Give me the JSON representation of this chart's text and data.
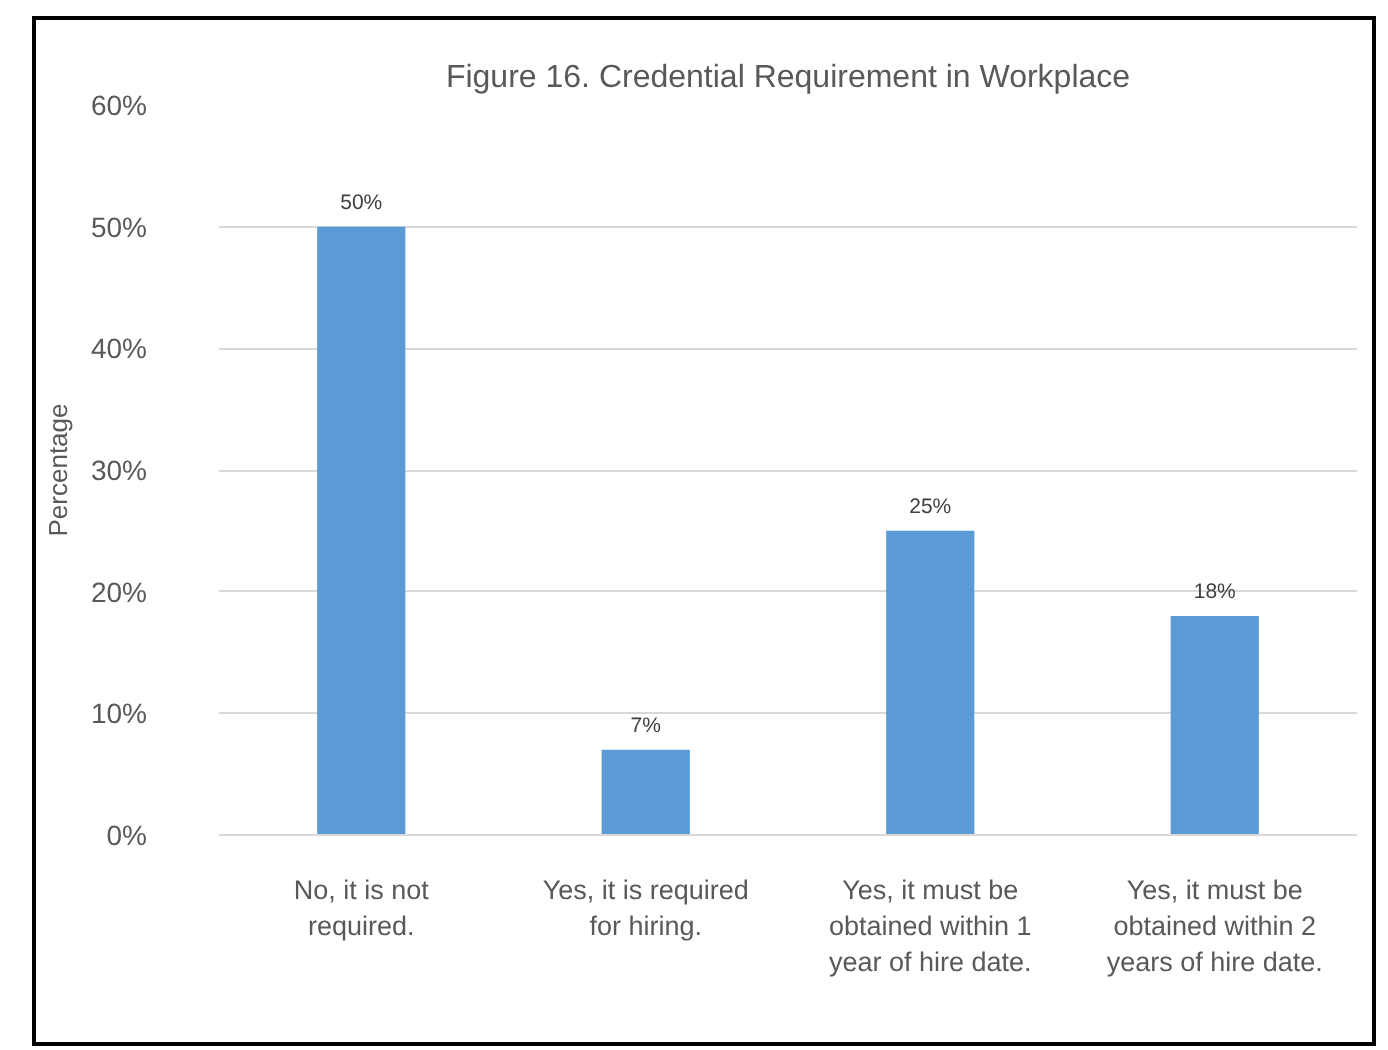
{
  "chart_data": {
    "type": "bar",
    "title": "Figure 16. Credential Requirement in Workplace",
    "ylabel": "Percentage",
    "categories": [
      "No, it is not required.",
      "Yes, it is required for hiring.",
      "Yes, it must be obtained within 1 year of hire date.",
      "Yes, it must be obtained within 2 years of hire date."
    ],
    "values": [
      50,
      7,
      25,
      18
    ],
    "value_labels": [
      "50%",
      "7%",
      "25%",
      "18%"
    ],
    "color": "#5b9bd5",
    "ylim": [
      0,
      60
    ],
    "yticks": [
      {
        "value": 0,
        "label": "0%"
      },
      {
        "value": 10,
        "label": "10%"
      },
      {
        "value": 20,
        "label": "20%"
      },
      {
        "value": 30,
        "label": "30%"
      },
      {
        "value": 40,
        "label": "40%"
      },
      {
        "value": 50,
        "label": "50%"
      },
      {
        "value": 60,
        "label": "60%"
      }
    ],
    "grid": "y"
  }
}
